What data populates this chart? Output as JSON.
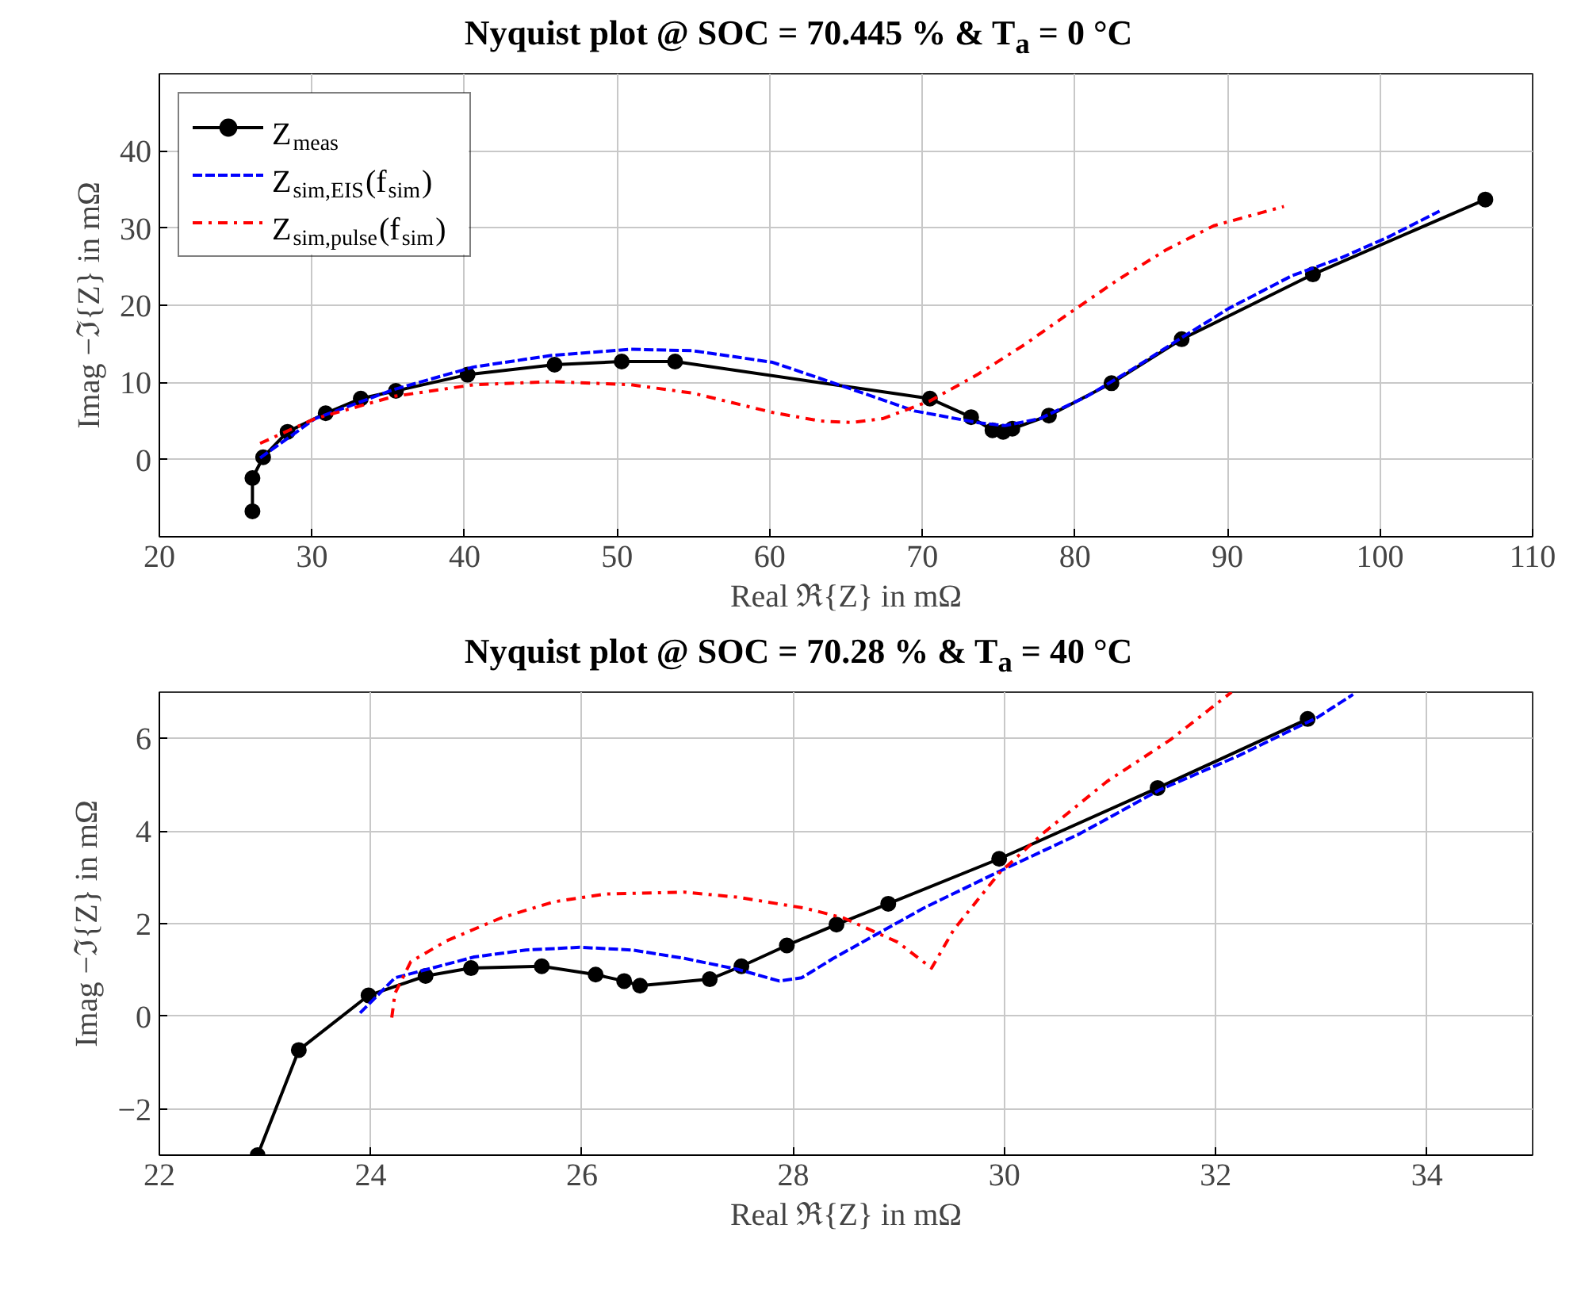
{
  "chart_data": [
    {
      "type": "line",
      "title": "Nyquist plot @ SOC = 70.445 % & T$_{a}$ = 0 °C",
      "xlabel": "Real ℜ{Z} in mΩ",
      "ylabel": "Imag −ℑ{Z} in mΩ",
      "xlim": [
        20,
        110
      ],
      "xticks": [
        20,
        30,
        40,
        50,
        60,
        70,
        80,
        90,
        100,
        110
      ],
      "ylim": [
        -10,
        50
      ],
      "yticks": [
        0,
        10,
        20,
        30,
        40
      ],
      "grid": true,
      "legend": "top left",
      "series": [
        {
          "name": "Z$_{meas}$",
          "color": "#000000",
          "marker": "circle",
          "line_style": "solid",
          "x": [
            26.1,
            26.1,
            26.8,
            28.4,
            30.9,
            33.2,
            35.5,
            40.2,
            45.9,
            50.3,
            53.8,
            70.5,
            73.2,
            74.6,
            75.3,
            75.9,
            78.3,
            82.4,
            87.0,
            95.6,
            106.9
          ],
          "values": [
            -6.7,
            -2.4,
            0.3,
            3.6,
            6.0,
            7.9,
            8.9,
            11.0,
            12.3,
            12.7,
            12.7,
            7.9,
            5.5,
            3.8,
            3.6,
            4.0,
            5.7,
            9.9,
            15.6,
            24.0,
            33.7
          ]
        },
        {
          "name": "Z$_{sim,EIS}$(f$_{sim}$)",
          "color": "#0000ff",
          "marker": "none",
          "line_style": "dashed",
          "x": [
            26.6,
            30.2,
            35.4,
            40.6,
            45.7,
            50.9,
            55.0,
            60.2,
            65.4,
            69.5,
            73.6,
            75.4,
            77.7,
            80.8,
            84.0,
            87.0,
            90.1,
            94.2,
            97.4,
            100.5,
            103.9
          ],
          "values": [
            0.2,
            5.3,
            9.1,
            12.0,
            13.5,
            14.3,
            14.1,
            12.6,
            9.1,
            6.3,
            4.8,
            4.4,
            5.3,
            8.2,
            12.0,
            15.8,
            19.6,
            23.8,
            26.1,
            28.8,
            32.2
          ]
        },
        {
          "name": "Z$_{sim,pulse}$(f$_{sim}$)",
          "color": "#ff0000",
          "marker": "none",
          "line_style": "dashdot",
          "x": [
            26.6,
            30.2,
            35.4,
            40.6,
            45.7,
            50.9,
            55.0,
            60.2,
            63.3,
            65.4,
            67.4,
            70.5,
            73.6,
            76.7,
            79.8,
            82.9,
            86.0,
            89.1,
            93.7
          ],
          "values": [
            2.1,
            5.3,
            8.2,
            9.7,
            10.1,
            9.7,
            8.6,
            6.1,
            5.0,
            4.8,
            5.3,
            7.6,
            11.0,
            14.9,
            19.2,
            23.4,
            27.2,
            30.3,
            32.8
          ]
        }
      ]
    },
    {
      "type": "line",
      "title": "Nyquist plot @ SOC = 70.28 % & T$_{a}$ = 40 °C",
      "xlabel": "Real ℜ{Z} in mΩ",
      "ylabel": "Imag −ℑ{Z} in mΩ",
      "xlim": [
        22,
        35
      ],
      "xticks": [
        22,
        24,
        26,
        28,
        30,
        32,
        34
      ],
      "ylim": [
        -3,
        7
      ],
      "yticks": [
        -2,
        0,
        2,
        4,
        6
      ],
      "grid": true,
      "series": [
        {
          "color": "#000000",
          "marker": "circle",
          "line_style": "solid",
          "x": [
            22.93,
            23.32,
            23.98,
            24.52,
            24.95,
            25.62,
            26.13,
            26.4,
            26.55,
            27.21,
            27.51,
            27.94,
            28.41,
            28.9,
            29.95,
            31.45,
            32.87
          ],
          "values": [
            -3.0,
            -0.73,
            0.45,
            0.87,
            1.04,
            1.08,
            0.9,
            0.76,
            0.66,
            0.8,
            1.08,
            1.53,
            1.98,
            2.43,
            3.4,
            4.93,
            6.42
          ]
        },
        {
          "color": "#0000ff",
          "marker": "none",
          "line_style": "dashed",
          "x": [
            23.9,
            24.23,
            24.98,
            25.47,
            25.98,
            26.48,
            26.97,
            27.48,
            27.87,
            28.08,
            28.38,
            29.23,
            29.98,
            30.72,
            31.47,
            32.21,
            32.96,
            33.3
          ],
          "values": [
            0.07,
            0.83,
            1.28,
            1.43,
            1.49,
            1.43,
            1.25,
            1.01,
            0.76,
            0.83,
            1.25,
            2.33,
            3.16,
            3.95,
            4.89,
            5.62,
            6.45,
            6.95
          ]
        },
        {
          "color": "#ff0000",
          "marker": "none",
          "line_style": "dashdot",
          "x": [
            24.2,
            24.23,
            24.38,
            24.72,
            25.23,
            25.73,
            26.22,
            26.97,
            27.48,
            28.12,
            28.48,
            28.99,
            29.31,
            29.52,
            29.95,
            30.37,
            30.97,
            31.57,
            32.15
          ],
          "values": [
            -0.03,
            0.49,
            1.18,
            1.63,
            2.12,
            2.47,
            2.64,
            2.68,
            2.57,
            2.33,
            2.12,
            1.6,
            1.04,
            1.87,
            3.09,
            3.96,
            5.07,
            5.97,
            7.0
          ]
        }
      ]
    }
  ]
}
